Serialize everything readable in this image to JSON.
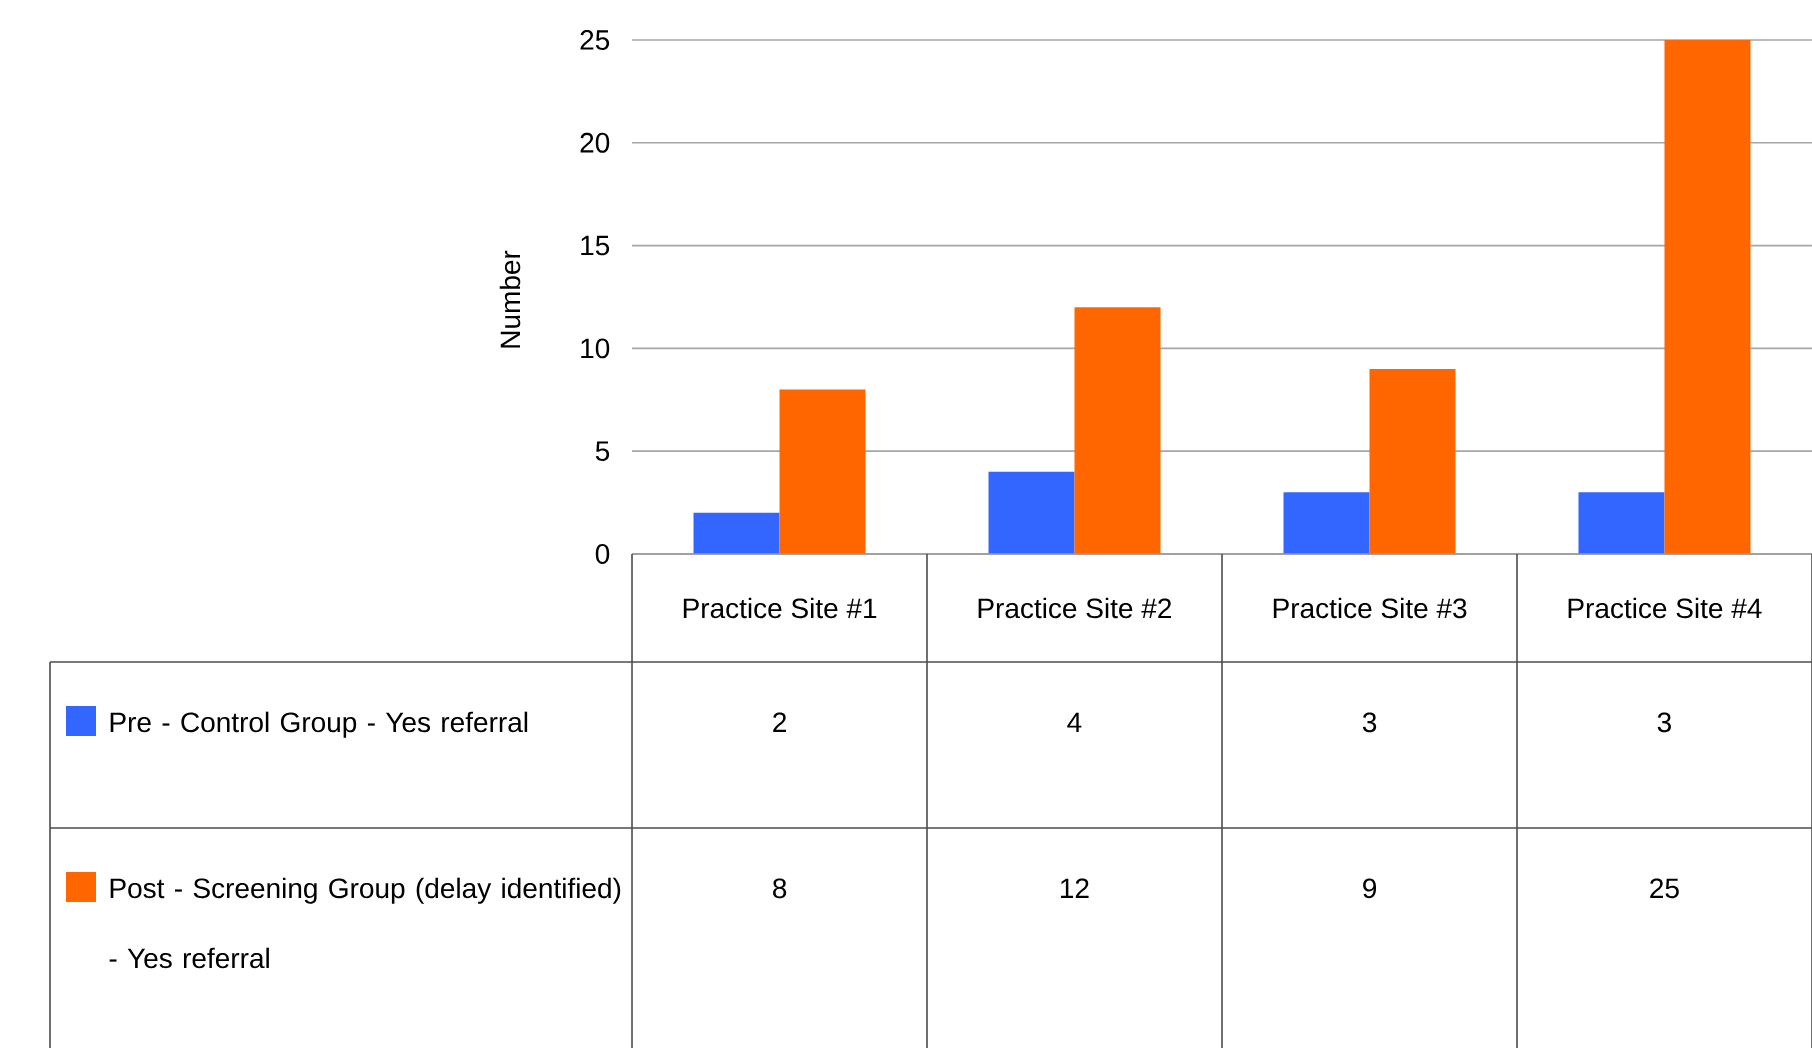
{
  "chart_data": {
    "type": "bar",
    "ylabel": "Number",
    "categories": [
      "Practice Site #1",
      "Practice Site #2",
      "Practice Site #3",
      "Practice Site #4"
    ],
    "series": [
      {
        "name": "Pre - Control Group - Yes referral",
        "color": "#3366ff",
        "values": [
          2,
          4,
          3,
          3
        ]
      },
      {
        "name": "Post - Screening Group (delay identified) - Yes referral",
        "color": "#ff6600",
        "values": [
          8,
          12,
          9,
          25
        ]
      }
    ],
    "ylim": [
      0,
      25
    ],
    "yticks": [
      0,
      5,
      10,
      15,
      20,
      25
    ],
    "grid": "y",
    "legend": "bottom",
    "data_labels": true
  }
}
